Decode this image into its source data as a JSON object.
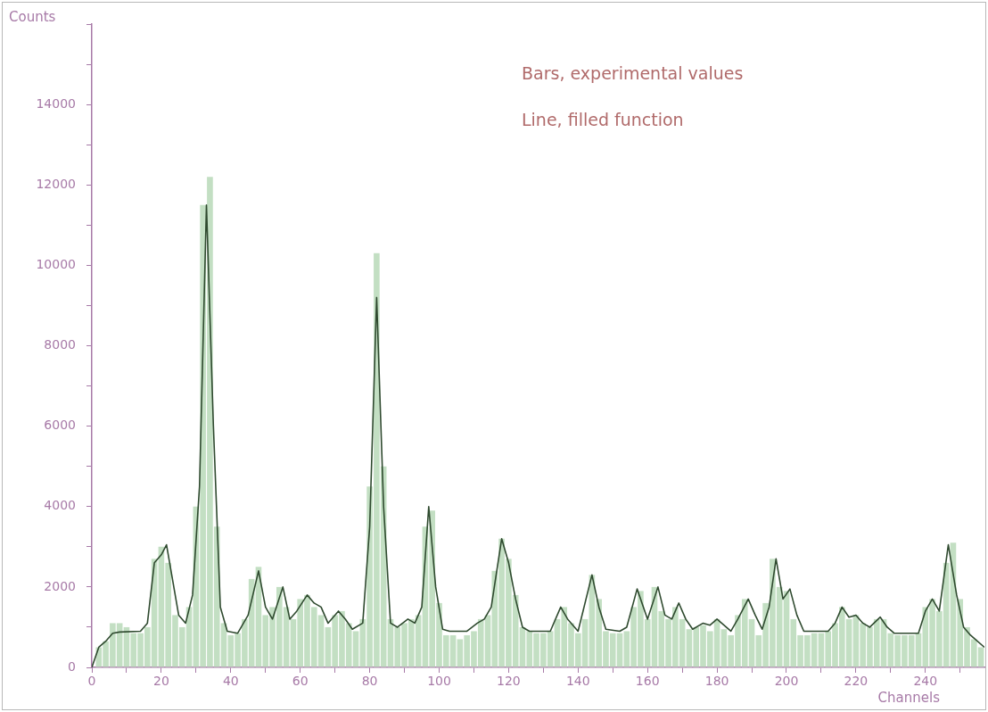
{
  "chart_data": {
    "type": "bar",
    "xlabel": "Channels",
    "ylabel": "Counts",
    "annotations": [
      "Bars, experimental values",
      "Line, filled function"
    ],
    "xlim": [
      0,
      257
    ],
    "ylim": [
      0,
      16000
    ],
    "xticks": [
      0,
      {
        "value": 10,
        "label": null
      },
      20,
      {
        "value": 30,
        "label": null
      },
      40,
      {
        "value": 50,
        "label": null
      },
      60,
      {
        "value": 70,
        "label": null
      },
      80,
      {
        "value": 90,
        "label": null
      },
      100,
      {
        "value": 110,
        "label": null
      },
      120,
      {
        "value": 130,
        "label": null
      },
      140,
      {
        "value": 150,
        "label": null
      },
      160,
      {
        "value": 170,
        "label": null
      },
      180,
      {
        "value": 190,
        "label": null
      },
      200,
      {
        "value": 210,
        "label": null
      },
      220,
      {
        "value": 230,
        "label": null
      },
      240,
      {
        "value": 250,
        "label": null
      }
    ],
    "yticks": [
      0,
      {
        "value": 1000,
        "label": null
      },
      2000,
      {
        "value": 3000,
        "label": null
      },
      4000,
      {
        "value": 5000,
        "label": null
      },
      6000,
      {
        "value": 7000,
        "label": null
      },
      8000,
      {
        "value": 9000,
        "label": null
      },
      10000,
      {
        "value": 11000,
        "label": null
      },
      12000,
      {
        "value": 13000,
        "label": null
      },
      14000,
      {
        "value": 15000,
        "label": null
      },
      {
        "value": 16000,
        "label": null
      }
    ],
    "grid": false,
    "legend": false,
    "series": [
      {
        "color": "#c3dfc3",
        "x": [
          0,
          2,
          4,
          6,
          8,
          10,
          12,
          14,
          16,
          18,
          20,
          22,
          24,
          26,
          28,
          30,
          32,
          34,
          36,
          38,
          40,
          42,
          44,
          46,
          48,
          50,
          52,
          54,
          56,
          58,
          60,
          62,
          64,
          66,
          68,
          70,
          72,
          74,
          76,
          78,
          80,
          82,
          84,
          86,
          88,
          90,
          92,
          94,
          96,
          98,
          100,
          102,
          104,
          106,
          108,
          110,
          112,
          114,
          116,
          118,
          120,
          122,
          124,
          126,
          128,
          130,
          132,
          134,
          136,
          138,
          140,
          142,
          144,
          146,
          148,
          150,
          152,
          154,
          156,
          158,
          160,
          162,
          164,
          166,
          168,
          170,
          172,
          174,
          176,
          178,
          180,
          182,
          184,
          186,
          188,
          190,
          192,
          194,
          196,
          198,
          200,
          202,
          204,
          206,
          208,
          210,
          212,
          214,
          216,
          218,
          220,
          222,
          224,
          226,
          228,
          230,
          232,
          234,
          236,
          238,
          240,
          242,
          244,
          246,
          248,
          250,
          252,
          254,
          256
        ],
        "values": [
          0,
          500,
          650,
          1100,
          1100,
          1000,
          850,
          850,
          1000,
          2700,
          3000,
          2600,
          1300,
          1000,
          1500,
          4000,
          11500,
          12200,
          3500,
          1100,
          800,
          850,
          1200,
          2200,
          2500,
          1300,
          1500,
          2000,
          1500,
          1200,
          1700,
          1800,
          1500,
          1300,
          1000,
          1300,
          1400,
          1100,
          900,
          1200,
          4500,
          10300,
          5000,
          1200,
          1000,
          1100,
          1200,
          1300,
          3500,
          3900,
          1600,
          800,
          800,
          700,
          800,
          900,
          1200,
          1300,
          2400,
          3200,
          2700,
          1800,
          1000,
          900,
          850,
          850,
          900,
          1200,
          1500,
          1100,
          850,
          1200,
          2300,
          1700,
          900,
          850,
          850,
          900,
          1500,
          1900,
          1200,
          2000,
          1400,
          1200,
          1500,
          1200,
          950,
          1000,
          1050,
          900,
          1200,
          950,
          800,
          1300,
          1700,
          1200,
          800,
          1600,
          2700,
          2000,
          1900,
          1200,
          800,
          800,
          850,
          850,
          900,
          1100,
          1500,
          1200,
          1300,
          1100,
          1000,
          1200,
          1200,
          850,
          800,
          800,
          800,
          850,
          1500,
          1700,
          1400,
          2600,
          3100,
          1700,
          1000,
          700,
          500
        ]
      },
      {
        "type": "line",
        "color": "#2f4a2f",
        "line_style": "solid",
        "x": [
          0,
          2,
          4,
          6,
          8,
          14,
          16,
          18,
          20,
          21.5,
          23,
          25,
          27,
          29,
          31,
          33,
          35,
          37,
          39,
          42,
          45,
          48,
          50,
          52,
          55,
          57,
          59,
          62,
          64,
          66,
          68,
          71,
          73,
          75,
          78,
          80,
          82,
          84,
          86,
          88,
          91,
          93,
          95,
          97,
          99,
          101,
          103,
          108,
          111,
          113,
          115,
          118,
          120,
          122,
          124,
          126,
          132,
          135,
          137,
          140,
          144,
          146,
          148,
          152,
          154,
          157,
          160,
          163,
          165,
          167,
          169,
          171,
          173,
          176,
          178,
          180,
          182,
          184,
          186,
          189,
          191,
          193,
          195,
          197,
          199,
          201,
          203,
          205,
          212,
          214,
          216,
          218,
          220,
          222,
          224,
          227,
          229,
          231,
          238,
          240,
          242,
          244,
          246.6,
          249,
          251,
          253,
          257
        ],
        "values": [
          0,
          500,
          650,
          850,
          880,
          900,
          1100,
          2600,
          2800,
          3050,
          2300,
          1300,
          1100,
          1800,
          4500,
          11500,
          6000,
          1500,
          900,
          850,
          1300,
          2400,
          1500,
          1200,
          2000,
          1200,
          1400,
          1800,
          1600,
          1500,
          1100,
          1400,
          1200,
          950,
          1100,
          3500,
          9200,
          4000,
          1100,
          1000,
          1200,
          1100,
          1500,
          4000,
          2000,
          950,
          900,
          900,
          1100,
          1200,
          1500,
          3200,
          2600,
          1700,
          1000,
          900,
          900,
          1500,
          1200,
          900,
          2300,
          1500,
          950,
          900,
          1000,
          1950,
          1200,
          2000,
          1300,
          1200,
          1600,
          1200,
          950,
          1100,
          1050,
          1200,
          1050,
          900,
          1200,
          1700,
          1300,
          950,
          1500,
          2700,
          1700,
          1950,
          1300,
          900,
          900,
          1100,
          1500,
          1250,
          1300,
          1100,
          1000,
          1250,
          1000,
          850,
          850,
          1400,
          1700,
          1400,
          3050,
          1800,
          1000,
          800,
          500
        ]
      }
    ]
  }
}
